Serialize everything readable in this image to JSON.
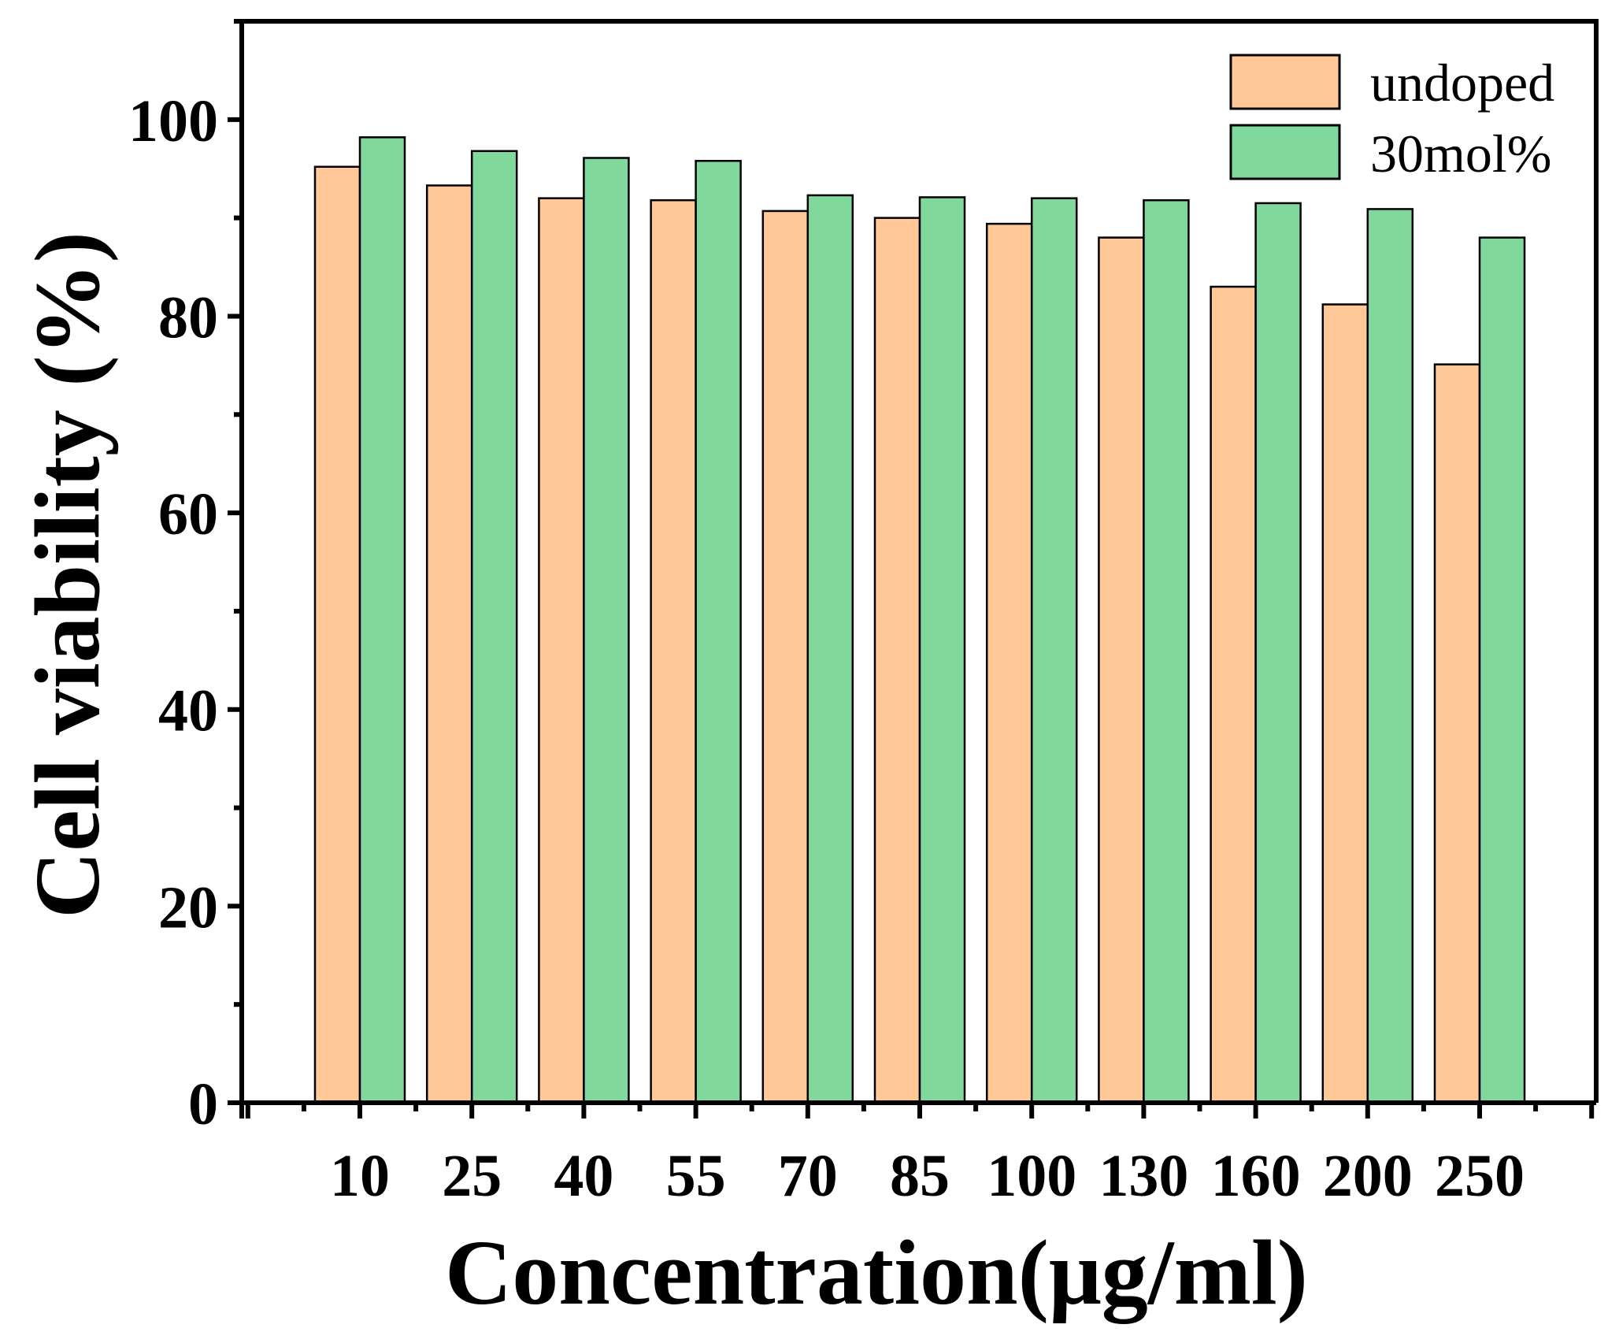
{
  "chart_data": {
    "type": "bar",
    "title": "",
    "xlabel": "Concentration(μg/ml)",
    "ylabel": "Cell viability (%)",
    "categories": [
      "10",
      "25",
      "40",
      "55",
      "70",
      "85",
      "100",
      "130",
      "160",
      "200",
      "250"
    ],
    "series": [
      {
        "name": "undoped",
        "color": "#FFC896",
        "values": [
          95.2,
          93.3,
          92.0,
          91.8,
          90.7,
          90.0,
          89.4,
          88.0,
          83.0,
          81.2,
          75.1
        ]
      },
      {
        "name": "30mol%",
        "color": "#80D89C",
        "values": [
          98.2,
          96.8,
          96.1,
          95.8,
          92.3,
          92.1,
          92.0,
          91.8,
          91.5,
          90.9,
          88.0
        ]
      }
    ],
    "ylim": [
      0,
      110
    ],
    "yticks": [
      0,
      20,
      40,
      60,
      80,
      100
    ],
    "legend_position": "top-right",
    "grid": false
  }
}
